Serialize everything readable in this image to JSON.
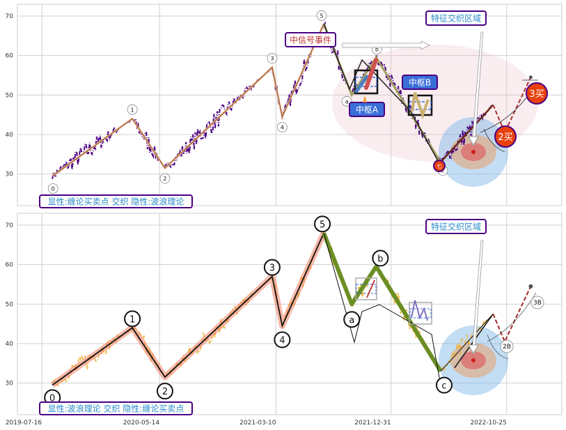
{
  "chart_data": [
    {
      "type": "line",
      "panel": "top",
      "title": "",
      "ylim": [
        22,
        73
      ],
      "xlim": [
        "2019-05-14",
        "2023-03-16"
      ],
      "yticks": [
        30,
        40,
        50,
        60,
        70
      ],
      "grid": true,
      "price_color": "#4b0082",
      "waves": [
        {
          "label": "0",
          "date": "2019-08-12",
          "value": 29.5
        },
        {
          "label": "1",
          "date": "2020-03-05",
          "value": 44
        },
        {
          "label": "2",
          "date": "2020-05-28",
          "value": 31.5
        },
        {
          "label": "3",
          "date": "2021-02-28",
          "value": 57
        },
        {
          "label": "4",
          "date": "2021-03-26",
          "value": 44.5
        },
        {
          "label": "5",
          "date": "2021-07-11",
          "value": 68
        },
        {
          "label": "a",
          "date": "2021-09-21",
          "value": 50
        },
        {
          "label": "b",
          "date": "2021-11-23",
          "value": 59.5
        },
        {
          "label": "c",
          "date": "2022-05-08",
          "value": 33
        }
      ],
      "extension": [
        {
          "date": "2022-05-08",
          "value": 33
        },
        {
          "date": "2022-09-20",
          "value": 47.5
        },
        {
          "date": "2022-10-20",
          "value": 40.5
        },
        {
          "date": "2022-12-26",
          "value": 54.5
        }
      ],
      "annotations": {
        "signal_event": "中信号事件",
        "feature_zone": "特征交织区域",
        "pivot_a": "中枢A",
        "pivot_b": "中枢B",
        "buy2": "2买",
        "buy3": "3买",
        "c_marker": "七",
        "legend": "显性:缠论买卖点 交织 隐性:波浪理论"
      }
    },
    {
      "type": "line",
      "panel": "bottom",
      "title": "",
      "ylim": [
        22,
        73
      ],
      "xlim": [
        "2019-05-14",
        "2023-03-16"
      ],
      "yticks": [
        30,
        40,
        50,
        60,
        70
      ],
      "xticks": [
        "2019-07-16",
        "2020-05-14",
        "2021-03-10",
        "2021-12-31",
        "2022-10-25"
      ],
      "grid": true,
      "price_color": "#f0b030",
      "waves": [
        {
          "label": "0",
          "date": "2019-08-12",
          "value": 29.5
        },
        {
          "label": "1",
          "date": "2020-03-05",
          "value": 44
        },
        {
          "label": "2",
          "date": "2020-05-28",
          "value": 31.5
        },
        {
          "label": "3",
          "date": "2021-02-28",
          "value": 57
        },
        {
          "label": "4",
          "date": "2021-03-26",
          "value": 44.5
        },
        {
          "label": "5",
          "date": "2021-07-11",
          "value": 68
        },
        {
          "label": "a",
          "date": "2021-09-21",
          "value": 50
        },
        {
          "label": "b",
          "date": "2021-11-23",
          "value": 59.5
        },
        {
          "label": "c",
          "date": "2022-05-08",
          "value": 33
        }
      ],
      "extension": [
        {
          "date": "2022-05-08",
          "value": 33
        },
        {
          "date": "2022-09-20",
          "value": 47.5
        },
        {
          "date": "2022-10-20",
          "value": 40.5
        },
        {
          "date": "2022-12-26",
          "value": 54.5
        }
      ],
      "annotations": {
        "feature_zone": "特征交织区域",
        "buy2": "2B",
        "buy3": "3B",
        "legend": "显性:波浪理论 交织 隐性:缠论买卖点"
      }
    }
  ]
}
